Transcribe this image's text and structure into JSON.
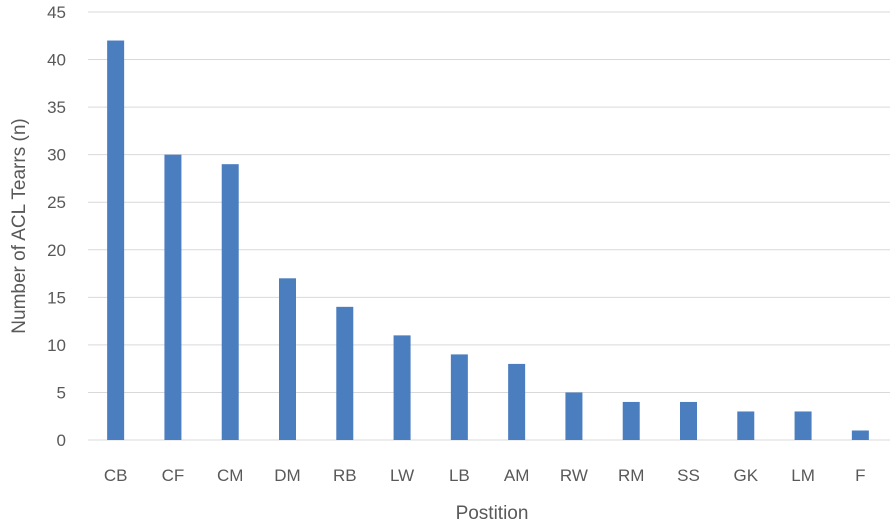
{
  "chart_data": {
    "type": "bar",
    "categories": [
      "CB",
      "CF",
      "CM",
      "DM",
      "RB",
      "LW",
      "LB",
      "AM",
      "RW",
      "RM",
      "SS",
      "GK",
      "LM",
      "F"
    ],
    "values": [
      42,
      30,
      29,
      17,
      14,
      11,
      9,
      8,
      5,
      4,
      4,
      3,
      3,
      1
    ],
    "title": "",
    "xlabel": "Postition",
    "ylabel": "Number of ACL Tearrs (n)",
    "ylim": [
      0,
      45
    ],
    "yticks": [
      0,
      5,
      10,
      15,
      20,
      25,
      30,
      35,
      40,
      45
    ],
    "grid": true,
    "legend": "none",
    "bar_color": "#4a7ebf"
  }
}
